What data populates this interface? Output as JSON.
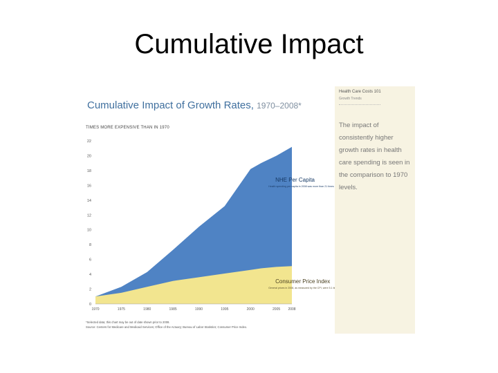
{
  "slide": {
    "title": "Cumulative Impact"
  },
  "chart_panel": {
    "title": "Cumulative Impact of Growth Rates,",
    "title_years": "1970–2008*",
    "y_caption": "TIMES MORE EXPENSIVE THAN IN 1970",
    "footnote_1": "*Selected data; this chart may be out of date shown prior to 2008.",
    "footnote_2": "Source: Centers for Medicare and Medicaid Services; Office of the Actuary; Bureau of Labor Statistics; Consumer Price Index."
  },
  "side_panel": {
    "title": "Health Care Costs 101",
    "subtitle": "Growth Trends",
    "body": "The impact of consistently higher growth rates in health care spending is seen in the comparison to 1970 levels."
  },
  "chart_data": {
    "type": "area",
    "title": "Cumulative Impact of Growth Rates, 1970–2008*",
    "ylabel": "TIMES MORE EXPENSIVE THAN IN 1970",
    "ylim": [
      0,
      22
    ],
    "yticks": [
      0,
      2,
      4,
      6,
      8,
      10,
      12,
      14,
      16,
      18,
      20,
      22
    ],
    "xlim": [
      1970,
      2008
    ],
    "xticks": [
      1970,
      1975,
      1980,
      1985,
      1990,
      1995,
      2000,
      2005,
      2008
    ],
    "grid": false,
    "series": [
      {
        "name": "NHE Per Capita",
        "color": "#4f83c4",
        "x": [
          1970,
          1975,
          1980,
          1985,
          1990,
          1995,
          2000,
          2002,
          2005,
          2008
        ],
        "values": [
          1,
          2.3,
          4.3,
          7.3,
          10.4,
          13.2,
          18.2,
          19.0,
          20.0,
          21.2
        ]
      },
      {
        "name": "Consumer Price Index",
        "color": "#f2e58f",
        "x": [
          1970,
          1975,
          1980,
          1985,
          1990,
          1995,
          2000,
          2002,
          2005,
          2008
        ],
        "values": [
          1,
          1.5,
          2.3,
          3.1,
          3.6,
          4.1,
          4.6,
          4.8,
          5.0,
          5.1
        ]
      }
    ],
    "annotations": [
      {
        "label": "NHE Per Capita",
        "x": 2004,
        "y": 16.5,
        "note": "Health spending per capita in 2008 was more than 21 times 1970 levels"
      },
      {
        "label": "Consumer Price Index",
        "x": 2004,
        "y": 2.8,
        "note": "General prices in 2008, as measured by the CPI, were 5.1 times 1970 levels"
      }
    ]
  }
}
